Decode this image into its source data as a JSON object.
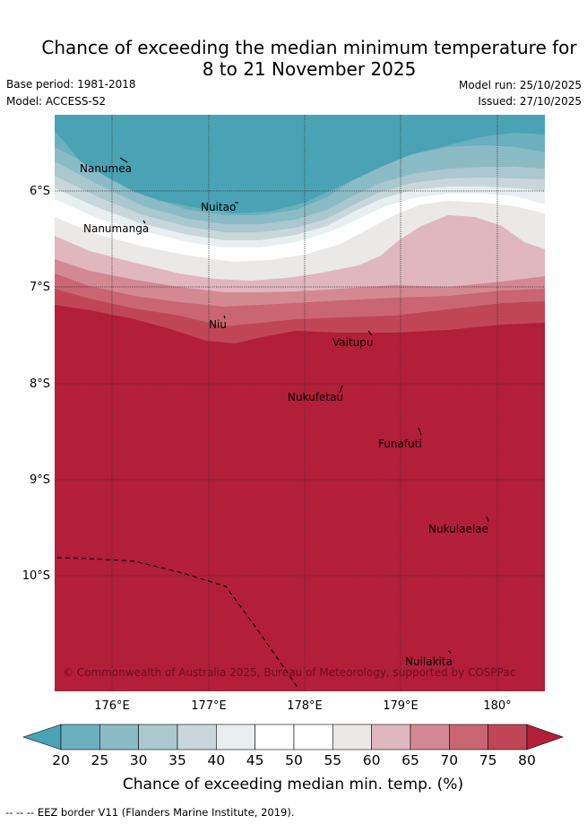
{
  "header": {
    "title_line1": "Chance of exceeding the median minimum temperature for",
    "title_line2": "8 to 21 November 2025",
    "base_period": "Base period: 1981-2018",
    "model": "Model: ACCESS-S2",
    "model_run": "Model run: 25/10/2025",
    "issued": "Issued: 27/10/2025"
  },
  "map": {
    "lon_labels": [
      "176°E",
      "177°E",
      "178°E",
      "179°E",
      "180°"
    ],
    "lat_labels": [
      "6°S",
      "7°S",
      "8°S",
      "9°S",
      "10°S"
    ],
    "places": [
      "Nanumea",
      "Nuitao",
      "Nanumanga",
      "Niu",
      "Vaitupu",
      "Nukufetau",
      "Funafuti",
      "Nukulaelae",
      "Nuilakita"
    ],
    "copyright": "© Commonwealth of Australia 2025, Bureau of Meteorology, supported by COSPPac"
  },
  "colorbar": {
    "ticks": [
      "20",
      "25",
      "30",
      "35",
      "40",
      "45",
      "50",
      "55",
      "60",
      "65",
      "70",
      "75",
      "80"
    ],
    "label": "Chance of exceeding median min. temp. (%)",
    "colors": {
      "below20": "#4aa3b5",
      "c20_25": "#6cb0bf",
      "c25_30": "#8bbbc6",
      "c30_35": "#aac8ce",
      "c35_40": "#c9d7db",
      "c40_45": "#e9eff1",
      "c45_50": "#ffffff",
      "c50_55": "#ffffff",
      "c55_60": "#ebe9e8",
      "c60_65": "#e0b7bf",
      "c65_70": "#d48992",
      "c70_75": "#c96672",
      "c75_80": "#c04656",
      "above80": "#b31e39"
    }
  },
  "footer": {
    "legend_line": "-- -- -- EEZ border V11 (Flanders Marine Institute, 2019)."
  }
}
